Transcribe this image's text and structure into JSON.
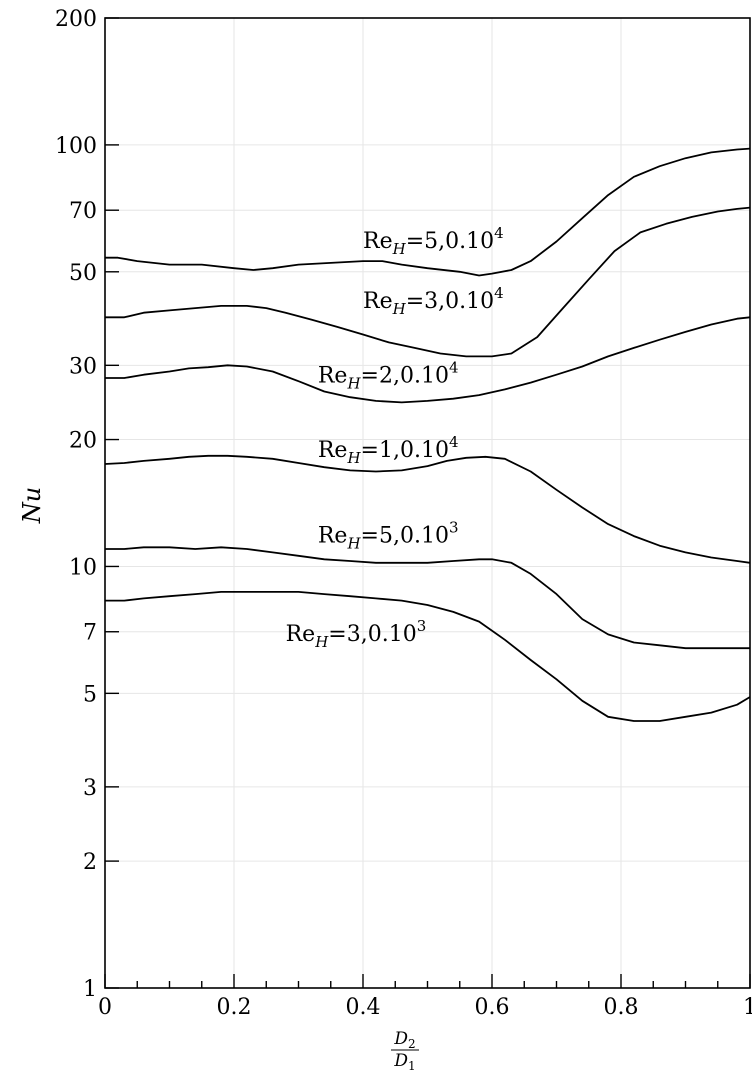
{
  "chart_data": {
    "type": "line",
    "xlabel": {
      "numerator": "D",
      "numerator_sub": "2",
      "denominator": "D",
      "denominator_sub": "1"
    },
    "ylabel": "Nu",
    "xlim": [
      0,
      1
    ],
    "ylim": [
      1,
      200
    ],
    "yscale": "log",
    "grid": true,
    "x_ticks": [
      0,
      0.2,
      0.4,
      0.6,
      0.8,
      1
    ],
    "x_tick_labels": [
      "0",
      "0.2",
      "0.4",
      "0.6",
      "0.8",
      "1"
    ],
    "y_ticks": [
      1,
      2,
      3,
      5,
      7,
      10,
      20,
      30,
      50,
      70,
      100,
      200
    ],
    "y_tick_labels": [
      "1",
      "2",
      "3",
      "5",
      "7",
      "10",
      "20",
      "30",
      "50",
      "70",
      "100",
      "200"
    ],
    "series": [
      {
        "name": "Re_H=5,0.10^4",
        "label": {
          "main": "Re",
          "sub": "H",
          "mid": "=5,0.10",
          "sup": "4"
        },
        "label_at": [
          0.4,
          57
        ],
        "x": [
          0,
          0.02,
          0.05,
          0.1,
          0.15,
          0.2,
          0.23,
          0.26,
          0.3,
          0.35,
          0.4,
          0.43,
          0.46,
          0.5,
          0.55,
          0.58,
          0.6,
          0.63,
          0.66,
          0.7,
          0.74,
          0.78,
          0.82,
          0.86,
          0.9,
          0.94,
          0.98,
          1.0
        ],
        "y": [
          54,
          54,
          53,
          52,
          52,
          51,
          50.5,
          51,
          52,
          52.5,
          53,
          53,
          52,
          51,
          50,
          49,
          49.5,
          50.5,
          53,
          59,
          67,
          76,
          84,
          89,
          93,
          96,
          97.5,
          98
        ]
      },
      {
        "name": "Re_H=3,0.10^4",
        "label": {
          "main": "Re",
          "sub": "H",
          "mid": "=3,0.10",
          "sup": "4"
        },
        "label_at": [
          0.4,
          41
        ],
        "x": [
          0,
          0.03,
          0.06,
          0.1,
          0.14,
          0.18,
          0.22,
          0.25,
          0.28,
          0.32,
          0.36,
          0.4,
          0.44,
          0.48,
          0.52,
          0.56,
          0.6,
          0.63,
          0.67,
          0.71,
          0.75,
          0.79,
          0.83,
          0.87,
          0.91,
          0.95,
          0.98,
          1.0
        ],
        "y": [
          39,
          39,
          40,
          40.5,
          41,
          41.5,
          41.5,
          41,
          40,
          38.5,
          37,
          35.5,
          34,
          33,
          32,
          31.5,
          31.5,
          32,
          35,
          41,
          48,
          56,
          62,
          65,
          67.5,
          69.5,
          70.5,
          71
        ]
      },
      {
        "name": "Re_H=2,0.10^4",
        "label": {
          "main": "Re",
          "sub": "H",
          "mid": "=2,0.10",
          "sup": "4"
        },
        "label_at": [
          0.33,
          27.3
        ],
        "x": [
          0,
          0.03,
          0.06,
          0.1,
          0.13,
          0.16,
          0.19,
          0.22,
          0.26,
          0.3,
          0.34,
          0.38,
          0.42,
          0.46,
          0.5,
          0.54,
          0.58,
          0.62,
          0.66,
          0.7,
          0.74,
          0.78,
          0.82,
          0.86,
          0.9,
          0.94,
          0.98,
          1.0
        ],
        "y": [
          28,
          28,
          28.5,
          29,
          29.5,
          29.7,
          30,
          29.8,
          29,
          27.5,
          26,
          25.2,
          24.7,
          24.5,
          24.7,
          25,
          25.5,
          26.3,
          27.3,
          28.5,
          29.8,
          31.5,
          33,
          34.5,
          36,
          37.5,
          38.7,
          39
        ]
      },
      {
        "name": "Re_H=1,0.10^4",
        "label": {
          "main": "Re",
          "sub": "H",
          "mid": "=1,0.10",
          "sup": "4"
        },
        "label_at": [
          0.33,
          18.2
        ],
        "x": [
          0,
          0.03,
          0.06,
          0.1,
          0.13,
          0.16,
          0.19,
          0.22,
          0.26,
          0.3,
          0.34,
          0.38,
          0.42,
          0.46,
          0.5,
          0.53,
          0.56,
          0.59,
          0.62,
          0.66,
          0.7,
          0.74,
          0.78,
          0.82,
          0.86,
          0.9,
          0.94,
          0.98,
          1.0
        ],
        "y": [
          17.5,
          17.6,
          17.8,
          18,
          18.2,
          18.3,
          18.3,
          18.2,
          18,
          17.6,
          17.2,
          16.9,
          16.8,
          16.9,
          17.3,
          17.8,
          18.1,
          18.2,
          18,
          16.8,
          15.2,
          13.8,
          12.6,
          11.8,
          11.2,
          10.8,
          10.5,
          10.3,
          10.2
        ]
      },
      {
        "name": "Re_H=5,0.10^3",
        "label": {
          "main": "Re",
          "sub": "H",
          "mid": "=5,0.10",
          "sup": "3"
        },
        "label_at": [
          0.33,
          11.4
        ],
        "x": [
          0,
          0.03,
          0.06,
          0.1,
          0.14,
          0.18,
          0.22,
          0.26,
          0.3,
          0.34,
          0.38,
          0.42,
          0.46,
          0.5,
          0.54,
          0.58,
          0.6,
          0.63,
          0.66,
          0.7,
          0.74,
          0.78,
          0.82,
          0.86,
          0.9,
          0.94,
          0.98,
          1.0
        ],
        "y": [
          11,
          11,
          11.1,
          11.1,
          11,
          11.1,
          11,
          10.8,
          10.6,
          10.4,
          10.3,
          10.2,
          10.2,
          10.2,
          10.3,
          10.4,
          10.4,
          10.2,
          9.6,
          8.6,
          7.5,
          6.9,
          6.6,
          6.5,
          6.4,
          6.4,
          6.4,
          6.4
        ]
      },
      {
        "name": "Re_H=3,0.10^3",
        "label": {
          "main": "Re",
          "sub": "H",
          "mid": "=3,0.10",
          "sup": "3"
        },
        "label_at": [
          0.28,
          6.65
        ],
        "x": [
          0,
          0.03,
          0.06,
          0.1,
          0.14,
          0.18,
          0.22,
          0.26,
          0.3,
          0.34,
          0.38,
          0.42,
          0.46,
          0.5,
          0.54,
          0.58,
          0.62,
          0.66,
          0.7,
          0.74,
          0.78,
          0.82,
          0.86,
          0.9,
          0.94,
          0.98,
          1.0
        ],
        "y": [
          8.3,
          8.3,
          8.4,
          8.5,
          8.6,
          8.7,
          8.7,
          8.7,
          8.7,
          8.6,
          8.5,
          8.4,
          8.3,
          8.1,
          7.8,
          7.4,
          6.7,
          6,
          5.4,
          4.8,
          4.4,
          4.3,
          4.3,
          4.4,
          4.5,
          4.7,
          4.9
        ]
      }
    ]
  }
}
